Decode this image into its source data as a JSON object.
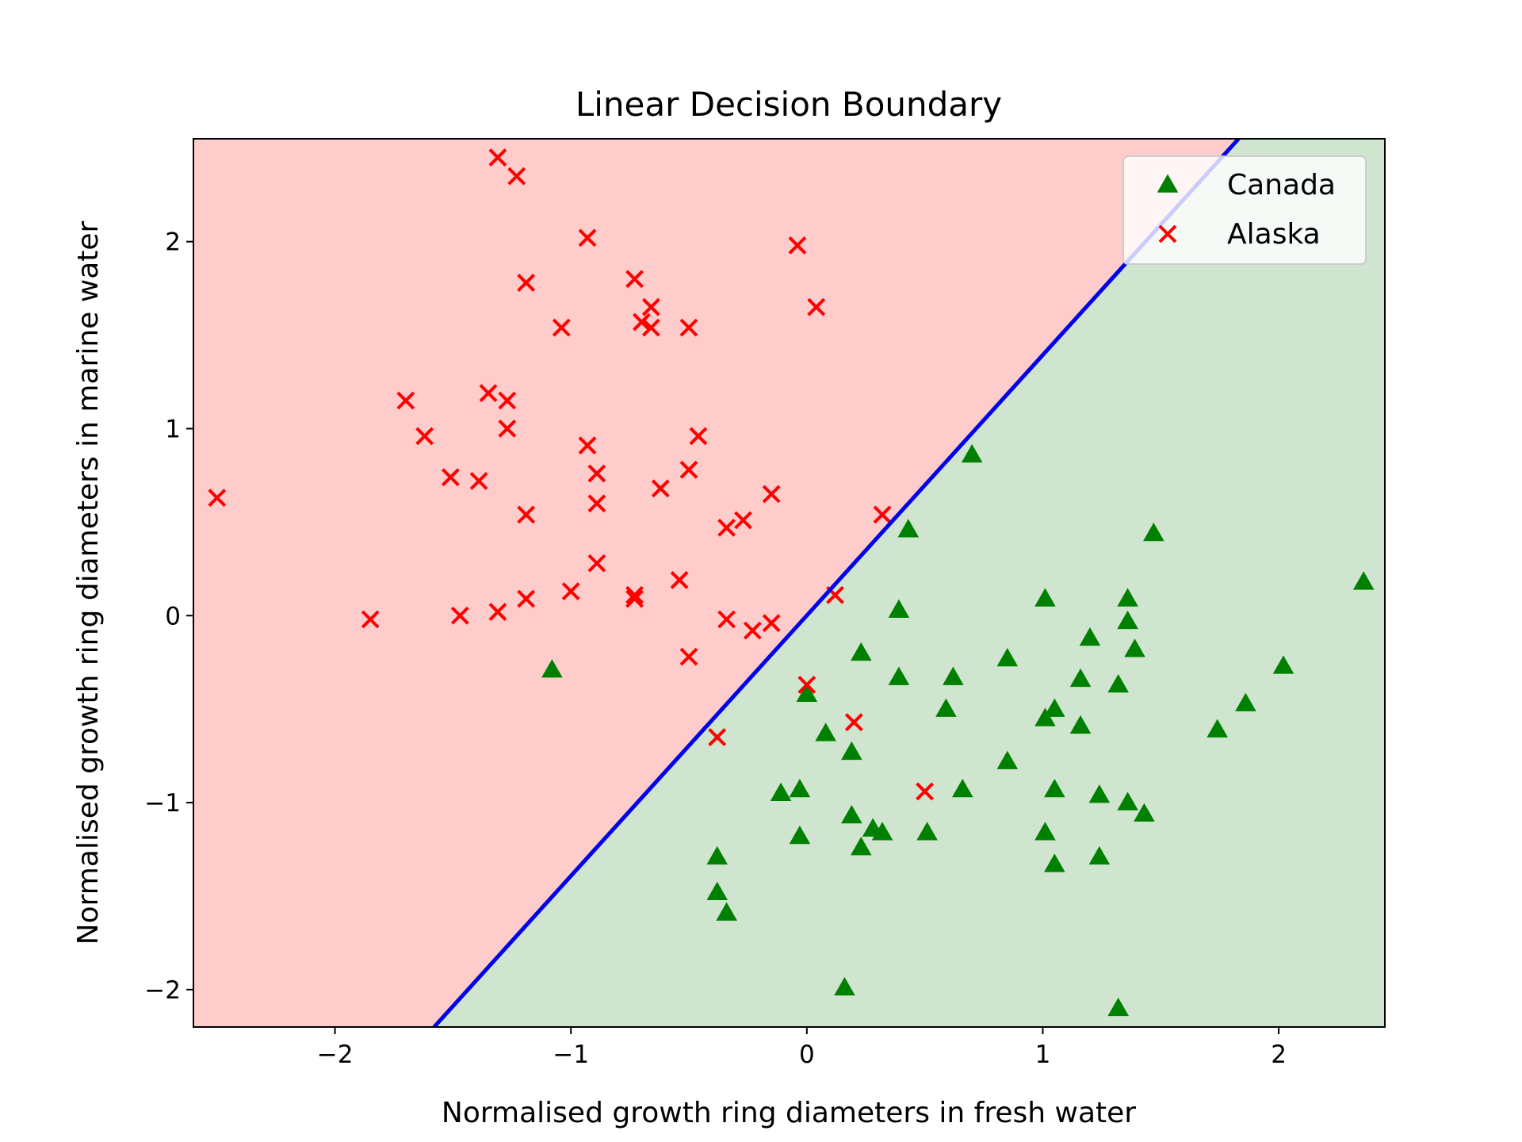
{
  "chart_data": {
    "type": "scatter",
    "title": "Linear Decision Boundary",
    "xlabel": "Normalised growth ring diameters in fresh water",
    "ylabel": "Normalised growth ring diameters in marine water",
    "xlim": [
      -2.6,
      2.45
    ],
    "ylim": [
      -2.2,
      2.55
    ],
    "xticks": [
      -2,
      -1,
      0,
      1,
      2
    ],
    "yticks": [
      -2,
      -1,
      0,
      1,
      2
    ],
    "grid": false,
    "legend_position": "top-right",
    "decision_boundary": {
      "from": [
        -1.58,
        -2.2
      ],
      "to": [
        1.83,
        2.55
      ],
      "color": "#0000ee",
      "regions": [
        {
          "side": "upper-left",
          "label": "Alaska",
          "color": "#ffcccc"
        },
        {
          "side": "lower-right",
          "label": "Canada",
          "color": "#cfe5cf"
        }
      ]
    },
    "series": [
      {
        "name": "Canada",
        "marker": "triangle",
        "color": "#008000",
        "points": [
          [
            0.7,
            0.86
          ],
          [
            0.43,
            0.46
          ],
          [
            1.47,
            0.44
          ],
          [
            2.36,
            0.18
          ],
          [
            1.01,
            0.09
          ],
          [
            1.36,
            0.09
          ],
          [
            0.39,
            0.03
          ],
          [
            1.36,
            -0.03
          ],
          [
            -1.08,
            -0.29
          ],
          [
            0.23,
            -0.2
          ],
          [
            0.85,
            -0.23
          ],
          [
            1.2,
            -0.12
          ],
          [
            1.39,
            -0.18
          ],
          [
            2.02,
            -0.27
          ],
          [
            0.39,
            -0.33
          ],
          [
            0.62,
            -0.33
          ],
          [
            1.16,
            -0.34
          ],
          [
            1.32,
            -0.37
          ],
          [
            0.0,
            -0.42
          ],
          [
            0.59,
            -0.5
          ],
          [
            1.05,
            -0.5
          ],
          [
            1.86,
            -0.47
          ],
          [
            1.01,
            -0.55
          ],
          [
            1.16,
            -0.59
          ],
          [
            1.74,
            -0.61
          ],
          [
            0.08,
            -0.63
          ],
          [
            0.19,
            -0.73
          ],
          [
            0.85,
            -0.78
          ],
          [
            -0.03,
            -0.93
          ],
          [
            -0.11,
            -0.95
          ],
          [
            0.66,
            -0.93
          ],
          [
            1.05,
            -0.93
          ],
          [
            1.24,
            -0.96
          ],
          [
            1.36,
            -1.0
          ],
          [
            1.43,
            -1.06
          ],
          [
            0.19,
            -1.07
          ],
          [
            -0.03,
            -1.18
          ],
          [
            0.28,
            -1.14
          ],
          [
            0.32,
            -1.16
          ],
          [
            0.51,
            -1.16
          ],
          [
            1.01,
            -1.16
          ],
          [
            0.23,
            -1.24
          ],
          [
            -0.38,
            -1.29
          ],
          [
            1.24,
            -1.29
          ],
          [
            1.05,
            -1.33
          ],
          [
            -0.38,
            -1.48
          ],
          [
            -0.34,
            -1.59
          ],
          [
            0.16,
            -1.99
          ],
          [
            1.32,
            -2.1
          ]
        ]
      },
      {
        "name": "Alaska",
        "marker": "x",
        "color": "#ff0000",
        "points": [
          [
            -1.31,
            2.45
          ],
          [
            -1.23,
            2.35
          ],
          [
            -0.93,
            2.02
          ],
          [
            -0.04,
            1.98
          ],
          [
            -1.19,
            1.78
          ],
          [
            -0.73,
            1.8
          ],
          [
            -0.66,
            1.65
          ],
          [
            0.04,
            1.65
          ],
          [
            -1.04,
            1.54
          ],
          [
            -0.7,
            1.57
          ],
          [
            -0.66,
            1.54
          ],
          [
            -0.5,
            1.54
          ],
          [
            -1.7,
            1.15
          ],
          [
            -1.35,
            1.19
          ],
          [
            -1.27,
            1.15
          ],
          [
            -1.62,
            0.96
          ],
          [
            -1.27,
            1.0
          ],
          [
            -0.46,
            0.96
          ],
          [
            -0.93,
            0.91
          ],
          [
            -0.89,
            0.76
          ],
          [
            -0.5,
            0.78
          ],
          [
            -1.51,
            0.74
          ],
          [
            -1.39,
            0.72
          ],
          [
            -0.62,
            0.68
          ],
          [
            -0.15,
            0.65
          ],
          [
            -2.5,
            0.63
          ],
          [
            -0.89,
            0.6
          ],
          [
            -1.19,
            0.54
          ],
          [
            0.32,
            0.54
          ],
          [
            -0.27,
            0.51
          ],
          [
            -0.34,
            0.47
          ],
          [
            -0.89,
            0.28
          ],
          [
            -0.54,
            0.19
          ],
          [
            -1.0,
            0.13
          ],
          [
            -0.73,
            0.11
          ],
          [
            -0.73,
            0.09
          ],
          [
            0.12,
            0.11
          ],
          [
            -1.19,
            0.09
          ],
          [
            -1.31,
            0.02
          ],
          [
            -1.47,
            0.0
          ],
          [
            -1.85,
            -0.02
          ],
          [
            -0.34,
            -0.02
          ],
          [
            -0.15,
            -0.04
          ],
          [
            -0.23,
            -0.08
          ],
          [
            -0.5,
            -0.22
          ],
          [
            0.0,
            -0.37
          ],
          [
            0.2,
            -0.57
          ],
          [
            -0.38,
            -0.65
          ],
          [
            0.5,
            -0.94
          ]
        ]
      }
    ]
  }
}
